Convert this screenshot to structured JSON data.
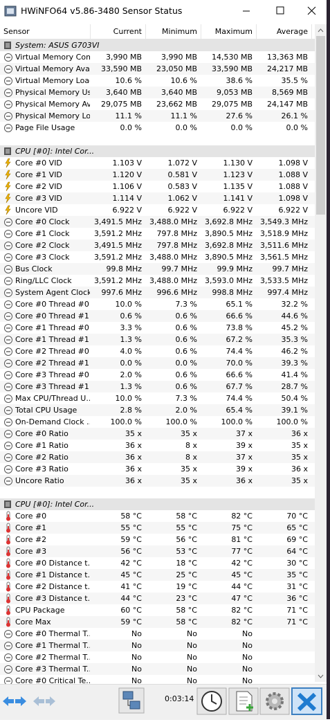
{
  "title": "HWiNFO64 v5.86-3480 Sensor Status",
  "columns": [
    "Sensor",
    "Current",
    "Minimum",
    "Maximum",
    "Average"
  ],
  "sections": [
    {
      "name": "System: ASUS G703VI",
      "rows": [
        [
          "Virtual Memory Com...",
          "3,990 MB",
          "3,990 MB",
          "14,530 MB",
          "13,363 MB"
        ],
        [
          "Virtual Memory Avai...",
          "33,590 MB",
          "23,050 MB",
          "33,590 MB",
          "24,217 MB"
        ],
        [
          "Virtual Memory Load",
          "10.6 %",
          "10.6 %",
          "38.6 %",
          "35.5 %"
        ],
        [
          "Physical Memory Used",
          "3,640 MB",
          "3,640 MB",
          "9,053 MB",
          "8,569 MB"
        ],
        [
          "Physical Memory Av...",
          "29,075 MB",
          "23,662 MB",
          "29,075 MB",
          "24,147 MB"
        ],
        [
          "Physical Memory Load",
          "11.1 %",
          "11.1 %",
          "27.6 %",
          "26.1 %"
        ],
        [
          "Page File Usage",
          "0.0 %",
          "0.0 %",
          "0.0 %",
          "0.0 %"
        ]
      ]
    },
    {
      "name": "CPU [#0]: Intel Cor...",
      "rows": [
        [
          "Core #0 VID",
          "1.103 V",
          "1.072 V",
          "1.130 V",
          "1.098 V"
        ],
        [
          "Core #1 VID",
          "1.120 V",
          "0.581 V",
          "1.123 V",
          "1.088 V"
        ],
        [
          "Core #2 VID",
          "1.106 V",
          "0.583 V",
          "1.135 V",
          "1.088 V"
        ],
        [
          "Core #3 VID",
          "1.114 V",
          "1.062 V",
          "1.141 V",
          "1.098 V"
        ],
        [
          "Uncore VID",
          "6.922 V",
          "6.922 V",
          "6.922 V",
          "6.922 V"
        ],
        [
          "Core #0 Clock",
          "3,491.5 MHz",
          "3,488.0 MHz",
          "3,692.8 MHz",
          "3,549.3 MHz"
        ],
        [
          "Core #1 Clock",
          "3,591.2 MHz",
          "797.8 MHz",
          "3,890.5 MHz",
          "3,518.9 MHz"
        ],
        [
          "Core #2 Clock",
          "3,491.5 MHz",
          "797.8 MHz",
          "3,692.8 MHz",
          "3,511.6 MHz"
        ],
        [
          "Core #3 Clock",
          "3,591.2 MHz",
          "3,488.0 MHz",
          "3,890.5 MHz",
          "3,561.5 MHz"
        ],
        [
          "Bus Clock",
          "99.8 MHz",
          "99.7 MHz",
          "99.9 MHz",
          "99.7 MHz"
        ],
        [
          "Ring/LLC Clock",
          "3,591.2 MHz",
          "3,488.0 MHz",
          "3,593.0 MHz",
          "3,533.5 MHz"
        ],
        [
          "System Agent Clock",
          "997.6 MHz",
          "996.6 MHz",
          "998.8 MHz",
          "997.4 MHz"
        ],
        [
          "Core #0 Thread #0...",
          "10.0 %",
          "7.3 %",
          "65.1 %",
          "32.2 %"
        ],
        [
          "Core #0 Thread #1...",
          "0.6 %",
          "0.6 %",
          "66.6 %",
          "44.6 %"
        ],
        [
          "Core #1 Thread #0...",
          "3.3 %",
          "0.6 %",
          "73.8 %",
          "45.2 %"
        ],
        [
          "Core #1 Thread #1...",
          "1.3 %",
          "0.6 %",
          "67.2 %",
          "35.3 %"
        ],
        [
          "Core #2 Thread #0...",
          "4.0 %",
          "0.6 %",
          "74.4 %",
          "46.2 %"
        ],
        [
          "Core #2 Thread #1...",
          "0.0 %",
          "0.0 %",
          "70.0 %",
          "39.3 %"
        ],
        [
          "Core #3 Thread #0...",
          "2.0 %",
          "0.6 %",
          "66.6 %",
          "41.4 %"
        ],
        [
          "Core #3 Thread #1...",
          "1.3 %",
          "0.6 %",
          "67.7 %",
          "28.7 %"
        ],
        [
          "Max CPU/Thread U...",
          "10.0 %",
          "7.3 %",
          "74.4 %",
          "50.4 %"
        ],
        [
          "Total CPU Usage",
          "2.8 %",
          "2.0 %",
          "65.4 %",
          "39.1 %"
        ],
        [
          "On-Demand Clock ...",
          "100.0 %",
          "100.0 %",
          "100.0 %",
          "100.0 %"
        ],
        [
          "Core #0 Ratio",
          "35 x",
          "35 x",
          "37 x",
          "36 x"
        ],
        [
          "Core #1 Ratio",
          "36 x",
          "8 x",
          "39 x",
          "35 x"
        ],
        [
          "Core #2 Ratio",
          "36 x",
          "8 x",
          "37 x",
          "35 x"
        ],
        [
          "Core #3 Ratio",
          "36 x",
          "35 x",
          "39 x",
          "36 x"
        ],
        [
          "Uncore Ratio",
          "36 x",
          "35 x",
          "36 x",
          "35 x"
        ]
      ]
    },
    {
      "name": "CPU [#0]: Intel Cor...",
      "rows": [
        [
          "Core #0",
          "58 °C",
          "58 °C",
          "82 °C",
          "70 °C"
        ],
        [
          "Core #1",
          "55 °C",
          "55 °C",
          "75 °C",
          "65 °C"
        ],
        [
          "Core #2",
          "59 °C",
          "56 °C",
          "81 °C",
          "69 °C"
        ],
        [
          "Core #3",
          "56 °C",
          "53 °C",
          "77 °C",
          "64 °C"
        ],
        [
          "Core #0 Distance t...",
          "42 °C",
          "18 °C",
          "42 °C",
          "30 °C"
        ],
        [
          "Core #1 Distance t...",
          "45 °C",
          "25 °C",
          "45 °C",
          "35 °C"
        ],
        [
          "Core #2 Distance t...",
          "41 °C",
          "19 °C",
          "44 °C",
          "31 °C"
        ],
        [
          "Core #3 Distance t...",
          "44 °C",
          "23 °C",
          "47 °C",
          "36 °C"
        ],
        [
          "CPU Package",
          "60 °C",
          "58 °C",
          "82 °C",
          "71 °C"
        ],
        [
          "Core Max",
          "59 °C",
          "58 °C",
          "82 °C",
          "71 °C"
        ],
        [
          "Core #0 Thermal T...",
          "No",
          "No",
          "No"
        ],
        [
          "Core #1 Thermal T...",
          "No",
          "No",
          "No"
        ],
        [
          "Core #2 Thermal T...",
          "No",
          "No",
          "No"
        ],
        [
          "Core #3 Thermal T...",
          "No",
          "No",
          "No"
        ],
        [
          "Core #0 Critical Te...",
          "No",
          "No",
          "No"
        ]
      ]
    }
  ],
  "elapsed": "0:03:14"
}
